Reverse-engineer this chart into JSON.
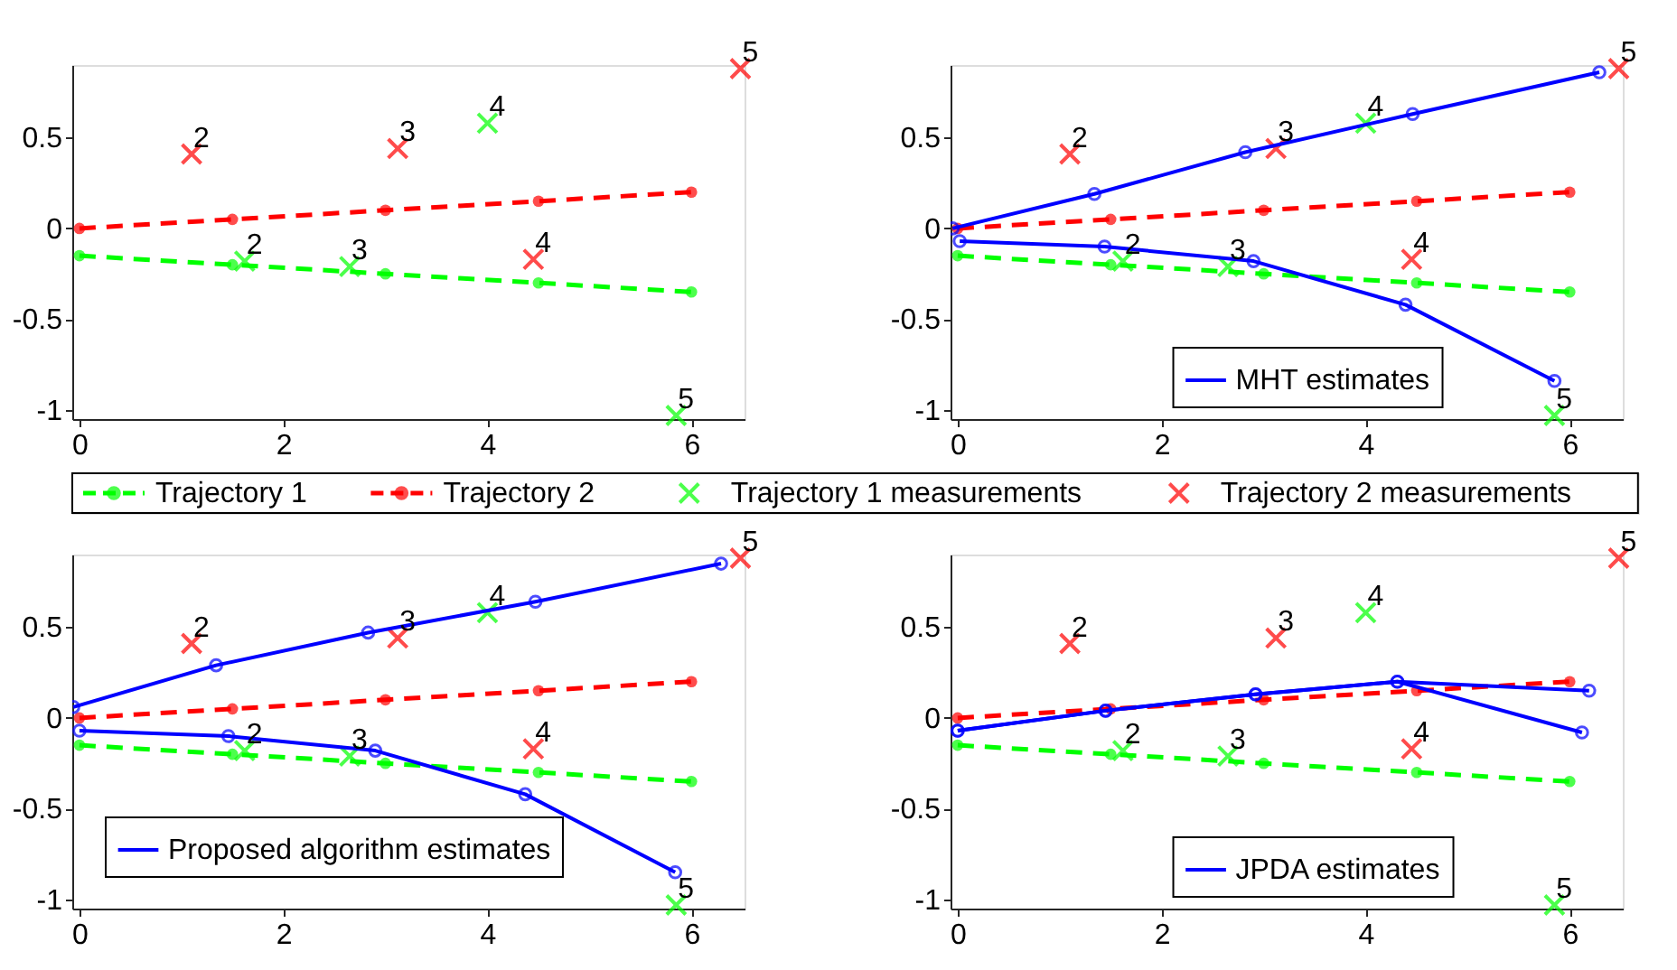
{
  "chart_data": [
    {
      "type": "line",
      "xlim": [
        -0.07,
        6.52
      ],
      "ylim": [
        -1.05,
        0.9
      ],
      "xticks": [
        0,
        2,
        4,
        6
      ],
      "yticks": [
        -1,
        -0.5,
        0,
        0.5
      ],
      "legend": "bottom",
      "series": [
        {
          "name": "Trajectory 1",
          "color": "#00ff00",
          "x": [
            0,
            1.5,
            3,
            4.5,
            6
          ],
          "values": [
            -0.15,
            -0.2,
            -0.25,
            -0.3,
            -0.35
          ],
          "line_style": "dashed",
          "marker": "circle"
        },
        {
          "name": "Trajectory 2",
          "color": "#ff0000",
          "x": [
            0,
            1.5,
            3,
            4.5,
            6
          ],
          "values": [
            0,
            0.05,
            0.1,
            0.15,
            0.2
          ],
          "line_style": "dashed",
          "marker": "circle"
        },
        {
          "name": "Trajectory 1 measurements",
          "type": "scatter",
          "color": "#00ff00",
          "x": [
            1.62,
            2.65,
            4.0,
            5.85
          ],
          "values": [
            -0.18,
            -0.21,
            0.58,
            -1.03
          ],
          "marker": "cross"
        },
        {
          "name": "Trajectory 2 measurements",
          "type": "scatter",
          "color": "#ff0000",
          "x": [
            1.1,
            3.12,
            4.45,
            6.48
          ],
          "values": [
            0.41,
            0.44,
            -0.17,
            0.88
          ],
          "marker": "cross"
        }
      ],
      "annotations": [
        {
          "text": "2",
          "x": 1.62,
          "y": -0.18
        },
        {
          "text": "3",
          "x": 2.65,
          "y": -0.21
        },
        {
          "text": "4",
          "x": 4.0,
          "y": 0.58
        },
        {
          "text": "5",
          "x": 5.85,
          "y": -1.03
        },
        {
          "text": "2",
          "x": 1.1,
          "y": 0.41
        },
        {
          "text": "3",
          "x": 3.12,
          "y": 0.44
        },
        {
          "text": "4",
          "x": 4.45,
          "y": -0.17
        },
        {
          "text": "5",
          "x": 6.48,
          "y": 0.88
        }
      ]
    },
    {
      "type": "line",
      "xlim": [
        -0.07,
        6.52
      ],
      "ylim": [
        -1.05,
        0.9
      ],
      "xticks": [
        0,
        2,
        4,
        6
      ],
      "yticks": [
        -1,
        -0.5,
        0,
        0.5
      ],
      "legend": "bottom",
      "series": [
        {
          "color": "#00ff00",
          "x": [
            0,
            1.5,
            3,
            4.5,
            6
          ],
          "values": [
            -0.15,
            -0.2,
            -0.25,
            -0.3,
            -0.35
          ],
          "line_style": "dashed",
          "marker": "circle"
        },
        {
          "color": "#ff0000",
          "x": [
            0,
            1.5,
            3,
            4.5,
            6
          ],
          "values": [
            0,
            0.05,
            0.1,
            0.15,
            0.2
          ],
          "line_style": "dashed",
          "marker": "circle"
        },
        {
          "type": "scatter",
          "color": "#00ff00",
          "x": [
            1.62,
            2.65,
            4.0,
            5.85
          ],
          "values": [
            -0.18,
            -0.21,
            0.58,
            -1.03
          ],
          "marker": "cross"
        },
        {
          "type": "scatter",
          "color": "#ff0000",
          "x": [
            1.1,
            3.12,
            4.45,
            6.48
          ],
          "values": [
            0.41,
            0.44,
            -0.17,
            0.88
          ],
          "marker": "cross"
        },
        {
          "name": "MHT estimates",
          "color": "#0000ff",
          "x": [
            -0.05,
            1.34,
            2.82,
            4.46,
            6.29
          ],
          "values": [
            0,
            0.19,
            0.42,
            0.63,
            0.86
          ],
          "line_style": "solid",
          "marker": "circle"
        },
        {
          "color": "#0000ff",
          "x": [
            0.02,
            1.44,
            2.9,
            4.39,
            5.85
          ],
          "values": [
            -0.07,
            -0.1,
            -0.18,
            -0.42,
            -0.84
          ],
          "line_style": "solid",
          "marker": "circle"
        }
      ],
      "annotations": [
        {
          "text": "2",
          "x": 1.62,
          "y": -0.18
        },
        {
          "text": "3",
          "x": 2.65,
          "y": -0.21
        },
        {
          "text": "4",
          "x": 4.0,
          "y": 0.58
        },
        {
          "text": "5",
          "x": 5.85,
          "y": -1.03
        },
        {
          "text": "2",
          "x": 1.1,
          "y": 0.41
        },
        {
          "text": "3",
          "x": 3.12,
          "y": 0.44
        },
        {
          "text": "4",
          "x": 4.45,
          "y": -0.17
        },
        {
          "text": "5",
          "x": 6.48,
          "y": 0.88
        }
      ]
    },
    {
      "type": "line",
      "xlim": [
        -0.07,
        6.52
      ],
      "ylim": [
        -1.05,
        0.9
      ],
      "xticks": [
        0,
        2,
        4,
        6
      ],
      "yticks": [
        -1,
        -0.5,
        0,
        0.5
      ],
      "legend": "bottom left",
      "series": [
        {
          "color": "#00ff00",
          "x": [
            0,
            1.5,
            3,
            4.5,
            6
          ],
          "values": [
            -0.15,
            -0.2,
            -0.25,
            -0.3,
            -0.35
          ],
          "line_style": "dashed",
          "marker": "circle"
        },
        {
          "color": "#ff0000",
          "x": [
            0,
            1.5,
            3,
            4.5,
            6
          ],
          "values": [
            0,
            0.05,
            0.1,
            0.15,
            0.2
          ],
          "line_style": "dashed",
          "marker": "circle"
        },
        {
          "type": "scatter",
          "color": "#00ff00",
          "x": [
            1.62,
            2.65,
            4.0,
            5.85
          ],
          "values": [
            -0.18,
            -0.21,
            0.58,
            -1.03
          ],
          "marker": "cross"
        },
        {
          "type": "scatter",
          "color": "#ff0000",
          "x": [
            1.1,
            3.12,
            4.45,
            6.48
          ],
          "values": [
            0.41,
            0.44,
            -0.17,
            0.88
          ],
          "marker": "cross"
        },
        {
          "name": "Proposed algorithm estimates",
          "color": "#0000ff",
          "x": [
            -0.06,
            1.34,
            2.83,
            4.47,
            6.29
          ],
          "values": [
            0.06,
            0.29,
            0.47,
            0.64,
            0.85
          ],
          "line_style": "solid",
          "marker": "circle"
        },
        {
          "color": "#0000ff",
          "x": [
            0,
            1.46,
            2.9,
            4.37,
            5.84
          ],
          "values": [
            -0.07,
            -0.1,
            -0.18,
            -0.42,
            -0.85
          ],
          "line_style": "solid",
          "marker": "circle"
        }
      ],
      "annotations": [
        {
          "text": "2",
          "x": 1.62,
          "y": -0.18
        },
        {
          "text": "3",
          "x": 2.65,
          "y": -0.21
        },
        {
          "text": "4",
          "x": 4.0,
          "y": 0.58
        },
        {
          "text": "5",
          "x": 5.85,
          "y": -1.03
        },
        {
          "text": "2",
          "x": 1.1,
          "y": 0.41
        },
        {
          "text": "3",
          "x": 3.12,
          "y": 0.44
        },
        {
          "text": "4",
          "x": 4.45,
          "y": -0.17
        },
        {
          "text": "5",
          "x": 6.48,
          "y": 0.88
        }
      ]
    },
    {
      "type": "line",
      "xlim": [
        -0.07,
        6.52
      ],
      "ylim": [
        -1.05,
        0.9
      ],
      "xticks": [
        0,
        2,
        4,
        6
      ],
      "yticks": [
        -1,
        -0.5,
        0,
        0.5
      ],
      "legend": "bottom",
      "series": [
        {
          "color": "#00ff00",
          "x": [
            0,
            1.5,
            3,
            4.5,
            6
          ],
          "values": [
            -0.15,
            -0.2,
            -0.25,
            -0.3,
            -0.35
          ],
          "line_style": "dashed",
          "marker": "circle"
        },
        {
          "color": "#ff0000",
          "x": [
            0,
            1.5,
            3,
            4.5,
            6
          ],
          "values": [
            0,
            0.05,
            0.1,
            0.15,
            0.2
          ],
          "line_style": "dashed",
          "marker": "circle"
        },
        {
          "type": "scatter",
          "color": "#00ff00",
          "x": [
            1.62,
            2.65,
            4.0,
            5.85
          ],
          "values": [
            -0.18,
            -0.21,
            0.58,
            -1.03
          ],
          "marker": "cross"
        },
        {
          "type": "scatter",
          "color": "#ff0000",
          "x": [
            1.1,
            3.12,
            4.45,
            6.48
          ],
          "values": [
            0.41,
            0.44,
            -0.17,
            0.88
          ],
          "marker": "cross"
        },
        {
          "name": "JPDA estimates",
          "color": "#0000ff",
          "x": [
            0,
            1.45,
            2.92,
            4.31,
            6.19
          ],
          "values": [
            -0.07,
            0.04,
            0.13,
            0.2,
            0.15
          ],
          "line_style": "solid",
          "marker": "circle"
        },
        {
          "color": "#0000ff",
          "x": [
            0,
            1.45,
            2.92,
            4.31,
            6.12
          ],
          "values": [
            -0.07,
            0.04,
            0.13,
            0.2,
            -0.08
          ],
          "line_style": "solid",
          "marker": "circle"
        }
      ],
      "annotations": [
        {
          "text": "2",
          "x": 1.62,
          "y": -0.18
        },
        {
          "text": "3",
          "x": 2.65,
          "y": -0.21
        },
        {
          "text": "4",
          "x": 4.0,
          "y": 0.58
        },
        {
          "text": "5",
          "x": 5.85,
          "y": -1.03
        },
        {
          "text": "2",
          "x": 1.1,
          "y": 0.41
        },
        {
          "text": "3",
          "x": 3.12,
          "y": 0.44
        },
        {
          "text": "4",
          "x": 4.45,
          "y": -0.17
        },
        {
          "text": "5",
          "x": 6.48,
          "y": 0.88
        }
      ]
    }
  ]
}
